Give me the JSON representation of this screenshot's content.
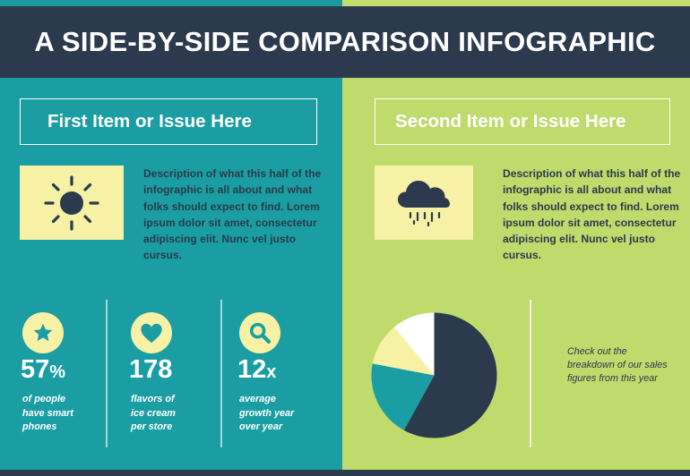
{
  "title": "A SIDE-BY-SIDE COMPARISON INFOGRAPHIC",
  "left": {
    "heading": "First Item or Issue Here",
    "icon": "sun-icon",
    "description": "Description of what this half of the infographic is all about and what folks should expect to find. Lorem ipsum dolor sit amet, consectetur adipiscing elit. Nunc vel justo cursus.",
    "stats": [
      {
        "icon": "star-icon",
        "value": "57",
        "suffix": "%",
        "label": "of people have smart phones"
      },
      {
        "icon": "heart-icon",
        "value": "178",
        "suffix": "",
        "label": "flavors of ice cream per store"
      },
      {
        "icon": "magnifier-icon",
        "value": "12",
        "suffix": "x",
        "label": "average growth year over year"
      }
    ]
  },
  "right": {
    "heading": "Second Item or Issue Here",
    "icon": "rain-cloud-icon",
    "description": "Description of what this half of the infographic is all about and what folks should expect to find. Lorem ipsum dolor sit amet, consectetur adipiscing elit. Nunc vel justo cursus.",
    "note": "Check out the breakdown of our sales figures from this year"
  },
  "colors": {
    "navy": "#2b3a4c",
    "teal": "#1a9ea3",
    "lime": "#bedb6c",
    "cream": "#f6f1a4",
    "white": "#ffffff"
  },
  "chart_data": {
    "type": "pie",
    "start_angle_deg": 0,
    "values": [
      58,
      20,
      11,
      11
    ],
    "colors": [
      "#2b3a4c",
      "#1a9ea3",
      "#f6f1a4",
      "#ffffff"
    ]
  }
}
